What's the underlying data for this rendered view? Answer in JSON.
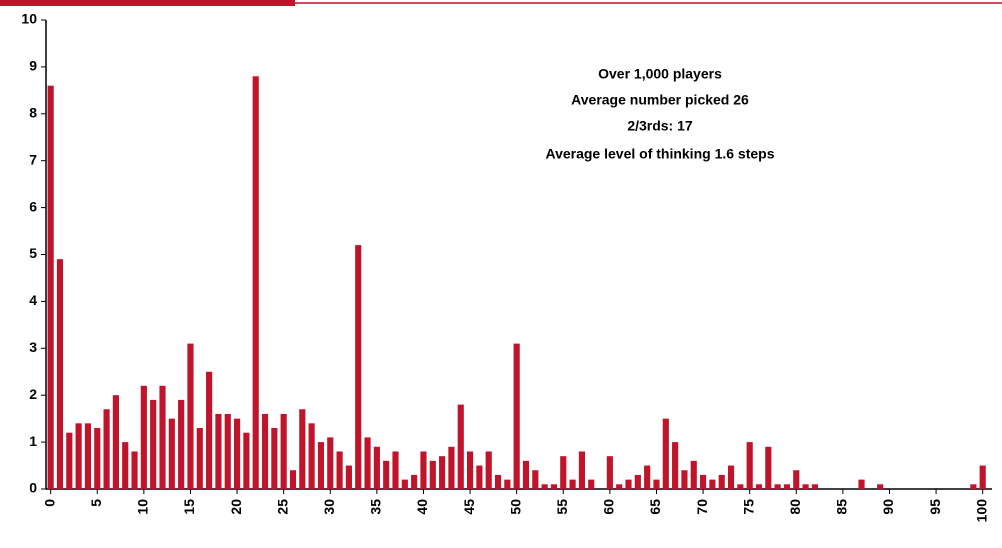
{
  "chart_data": {
    "type": "bar",
    "annotations": [
      "Over 1,000 players",
      "Average number picked 26",
      "2/3rds: 17",
      "Average level of thinking 1.6 steps"
    ],
    "x": [
      0,
      1,
      2,
      3,
      4,
      5,
      6,
      7,
      8,
      9,
      10,
      11,
      12,
      13,
      14,
      15,
      16,
      17,
      18,
      19,
      20,
      21,
      22,
      23,
      24,
      25,
      26,
      27,
      28,
      29,
      30,
      31,
      32,
      33,
      34,
      35,
      36,
      37,
      38,
      39,
      40,
      41,
      42,
      43,
      44,
      45,
      46,
      47,
      48,
      49,
      50,
      51,
      52,
      53,
      54,
      55,
      56,
      57,
      58,
      59,
      60,
      61,
      62,
      63,
      64,
      65,
      66,
      67,
      68,
      69,
      70,
      71,
      72,
      73,
      74,
      75,
      76,
      77,
      78,
      79,
      80,
      81,
      82,
      83,
      84,
      85,
      86,
      87,
      88,
      89,
      90,
      91,
      92,
      93,
      94,
      95,
      96,
      97,
      98,
      99,
      100
    ],
    "values": [
      8.6,
      4.9,
      1.2,
      1.4,
      1.4,
      1.3,
      1.7,
      2.0,
      1.0,
      0.8,
      2.2,
      1.9,
      2.2,
      1.5,
      1.9,
      3.1,
      1.3,
      2.5,
      1.6,
      1.6,
      1.5,
      1.2,
      8.8,
      1.6,
      1.3,
      1.6,
      0.4,
      1.7,
      1.4,
      1.0,
      1.1,
      0.8,
      0.5,
      5.2,
      1.1,
      0.9,
      0.6,
      0.8,
      0.2,
      0.3,
      0.8,
      0.6,
      0.7,
      0.9,
      1.8,
      0.8,
      0.5,
      0.8,
      0.3,
      0.2,
      3.1,
      0.6,
      0.4,
      0.1,
      0.1,
      0.7,
      0.2,
      0.8,
      0.2,
      0,
      0.7,
      0.1,
      0.2,
      0.3,
      0.5,
      0.2,
      1.5,
      1.0,
      0.4,
      0.6,
      0.3,
      0.2,
      0.3,
      0.5,
      0.1,
      1.0,
      0.1,
      0.9,
      0.1,
      0.1,
      0.4,
      0.1,
      0.1,
      0,
      0,
      0,
      0,
      0.2,
      0,
      0.1,
      0,
      0,
      0,
      0,
      0,
      0,
      0,
      0,
      0,
      0.1,
      0.5
    ],
    "color": "#c0142a",
    "xlim": [
      -0.5,
      101
    ],
    "xticks": [
      0,
      5,
      10,
      15,
      20,
      25,
      30,
      35,
      40,
      45,
      50,
      55,
      60,
      65,
      70,
      75,
      80,
      85,
      90,
      95,
      100
    ],
    "ylim": [
      0,
      10
    ],
    "yticks": [
      0,
      1,
      2,
      3,
      4,
      5,
      6,
      7,
      8,
      9,
      10
    ]
  }
}
